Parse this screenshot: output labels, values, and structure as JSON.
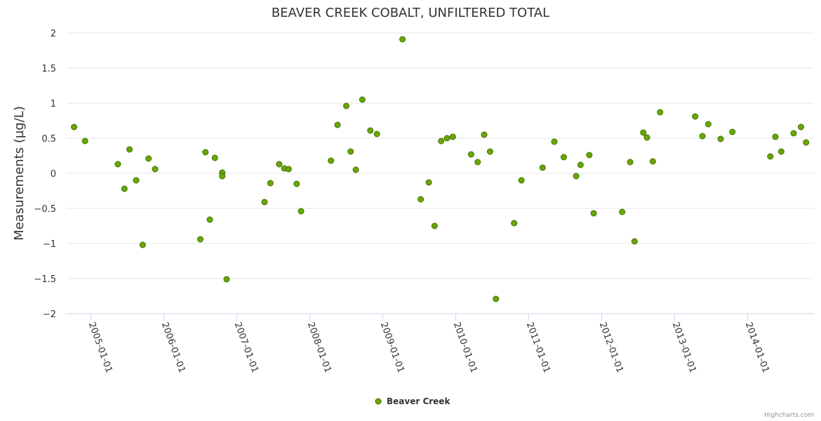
{
  "chart_data": {
    "type": "scatter",
    "title": "BEAVER CREEK COBALT, UNFILTERED TOTAL",
    "xlabel": "",
    "ylabel": "Measurements (µg/L)",
    "ylim": [
      -2,
      2
    ],
    "yticks": [
      2,
      1.5,
      1,
      0.5,
      0,
      -0.5,
      -1,
      -1.5,
      -2
    ],
    "ytick_labels": [
      "2",
      "1.5",
      "1",
      "0.5",
      "0",
      "−0.5",
      "−1",
      "−1.5",
      "−2"
    ],
    "xlim_year": [
      2004.66,
      2014.9
    ],
    "xticks_year": [
      2005,
      2006,
      2007,
      2008,
      2009,
      2010,
      2011,
      2012,
      2013,
      2014
    ],
    "xtick_labels": [
      "2005-01-01",
      "2006-01-01",
      "2007-01-01",
      "2008-01-01",
      "2009-01-01",
      "2010-01-01",
      "2011-01-01",
      "2012-01-01",
      "2013-01-01",
      "2014-01-01"
    ],
    "grid": true,
    "legend_position": "bottom-center",
    "series": [
      {
        "name": "Beaver Creek",
        "color": "#6aa800",
        "x_year": [
          2004.77,
          2004.92,
          2005.37,
          2005.46,
          2005.53,
          2005.62,
          2005.71,
          2005.79,
          2005.88,
          2006.5,
          2006.57,
          2006.63,
          2006.7,
          2006.8,
          2006.8,
          2006.86,
          2007.38,
          2007.46,
          2007.58,
          2007.65,
          2007.71,
          2007.82,
          2007.88,
          2008.29,
          2008.38,
          2008.5,
          2008.56,
          2008.63,
          2008.72,
          2008.83,
          2008.92,
          2009.27,
          2009.52,
          2009.63,
          2009.71,
          2009.8,
          2009.88,
          2009.96,
          2010.21,
          2010.3,
          2010.39,
          2010.47,
          2010.55,
          2010.8,
          2010.9,
          2011.19,
          2011.35,
          2011.48,
          2011.65,
          2011.71,
          2011.83,
          2011.89,
          2012.28,
          2012.39,
          2012.45,
          2012.57,
          2012.62,
          2012.7,
          2012.8,
          2013.28,
          2013.38,
          2013.46,
          2013.63,
          2013.79,
          2014.31,
          2014.38,
          2014.46,
          2014.63,
          2014.73,
          2014.8
        ],
        "y": [
          0.66,
          0.46,
          0.13,
          -0.22,
          0.34,
          -0.1,
          -1.02,
          0.21,
          0.06,
          -0.94,
          0.3,
          -0.66,
          0.22,
          0.01,
          -0.04,
          -1.51,
          -0.41,
          -0.14,
          0.13,
          0.07,
          0.06,
          -0.15,
          -0.54,
          0.18,
          0.69,
          0.96,
          0.31,
          0.05,
          1.05,
          0.61,
          0.56,
          1.91,
          -0.37,
          -0.13,
          -0.75,
          0.46,
          0.5,
          0.52,
          0.27,
          0.16,
          0.55,
          0.31,
          -1.79,
          -0.71,
          -0.1,
          0.08,
          0.45,
          0.23,
          -0.04,
          0.12,
          0.26,
          -0.57,
          -0.55,
          0.16,
          -0.97,
          0.58,
          0.51,
          0.17,
          0.87,
          0.81,
          0.53,
          0.7,
          0.49,
          0.59,
          0.24,
          0.52,
          0.31,
          0.57,
          0.66,
          0.44
        ]
      }
    ]
  },
  "credits": "Highcharts.com"
}
